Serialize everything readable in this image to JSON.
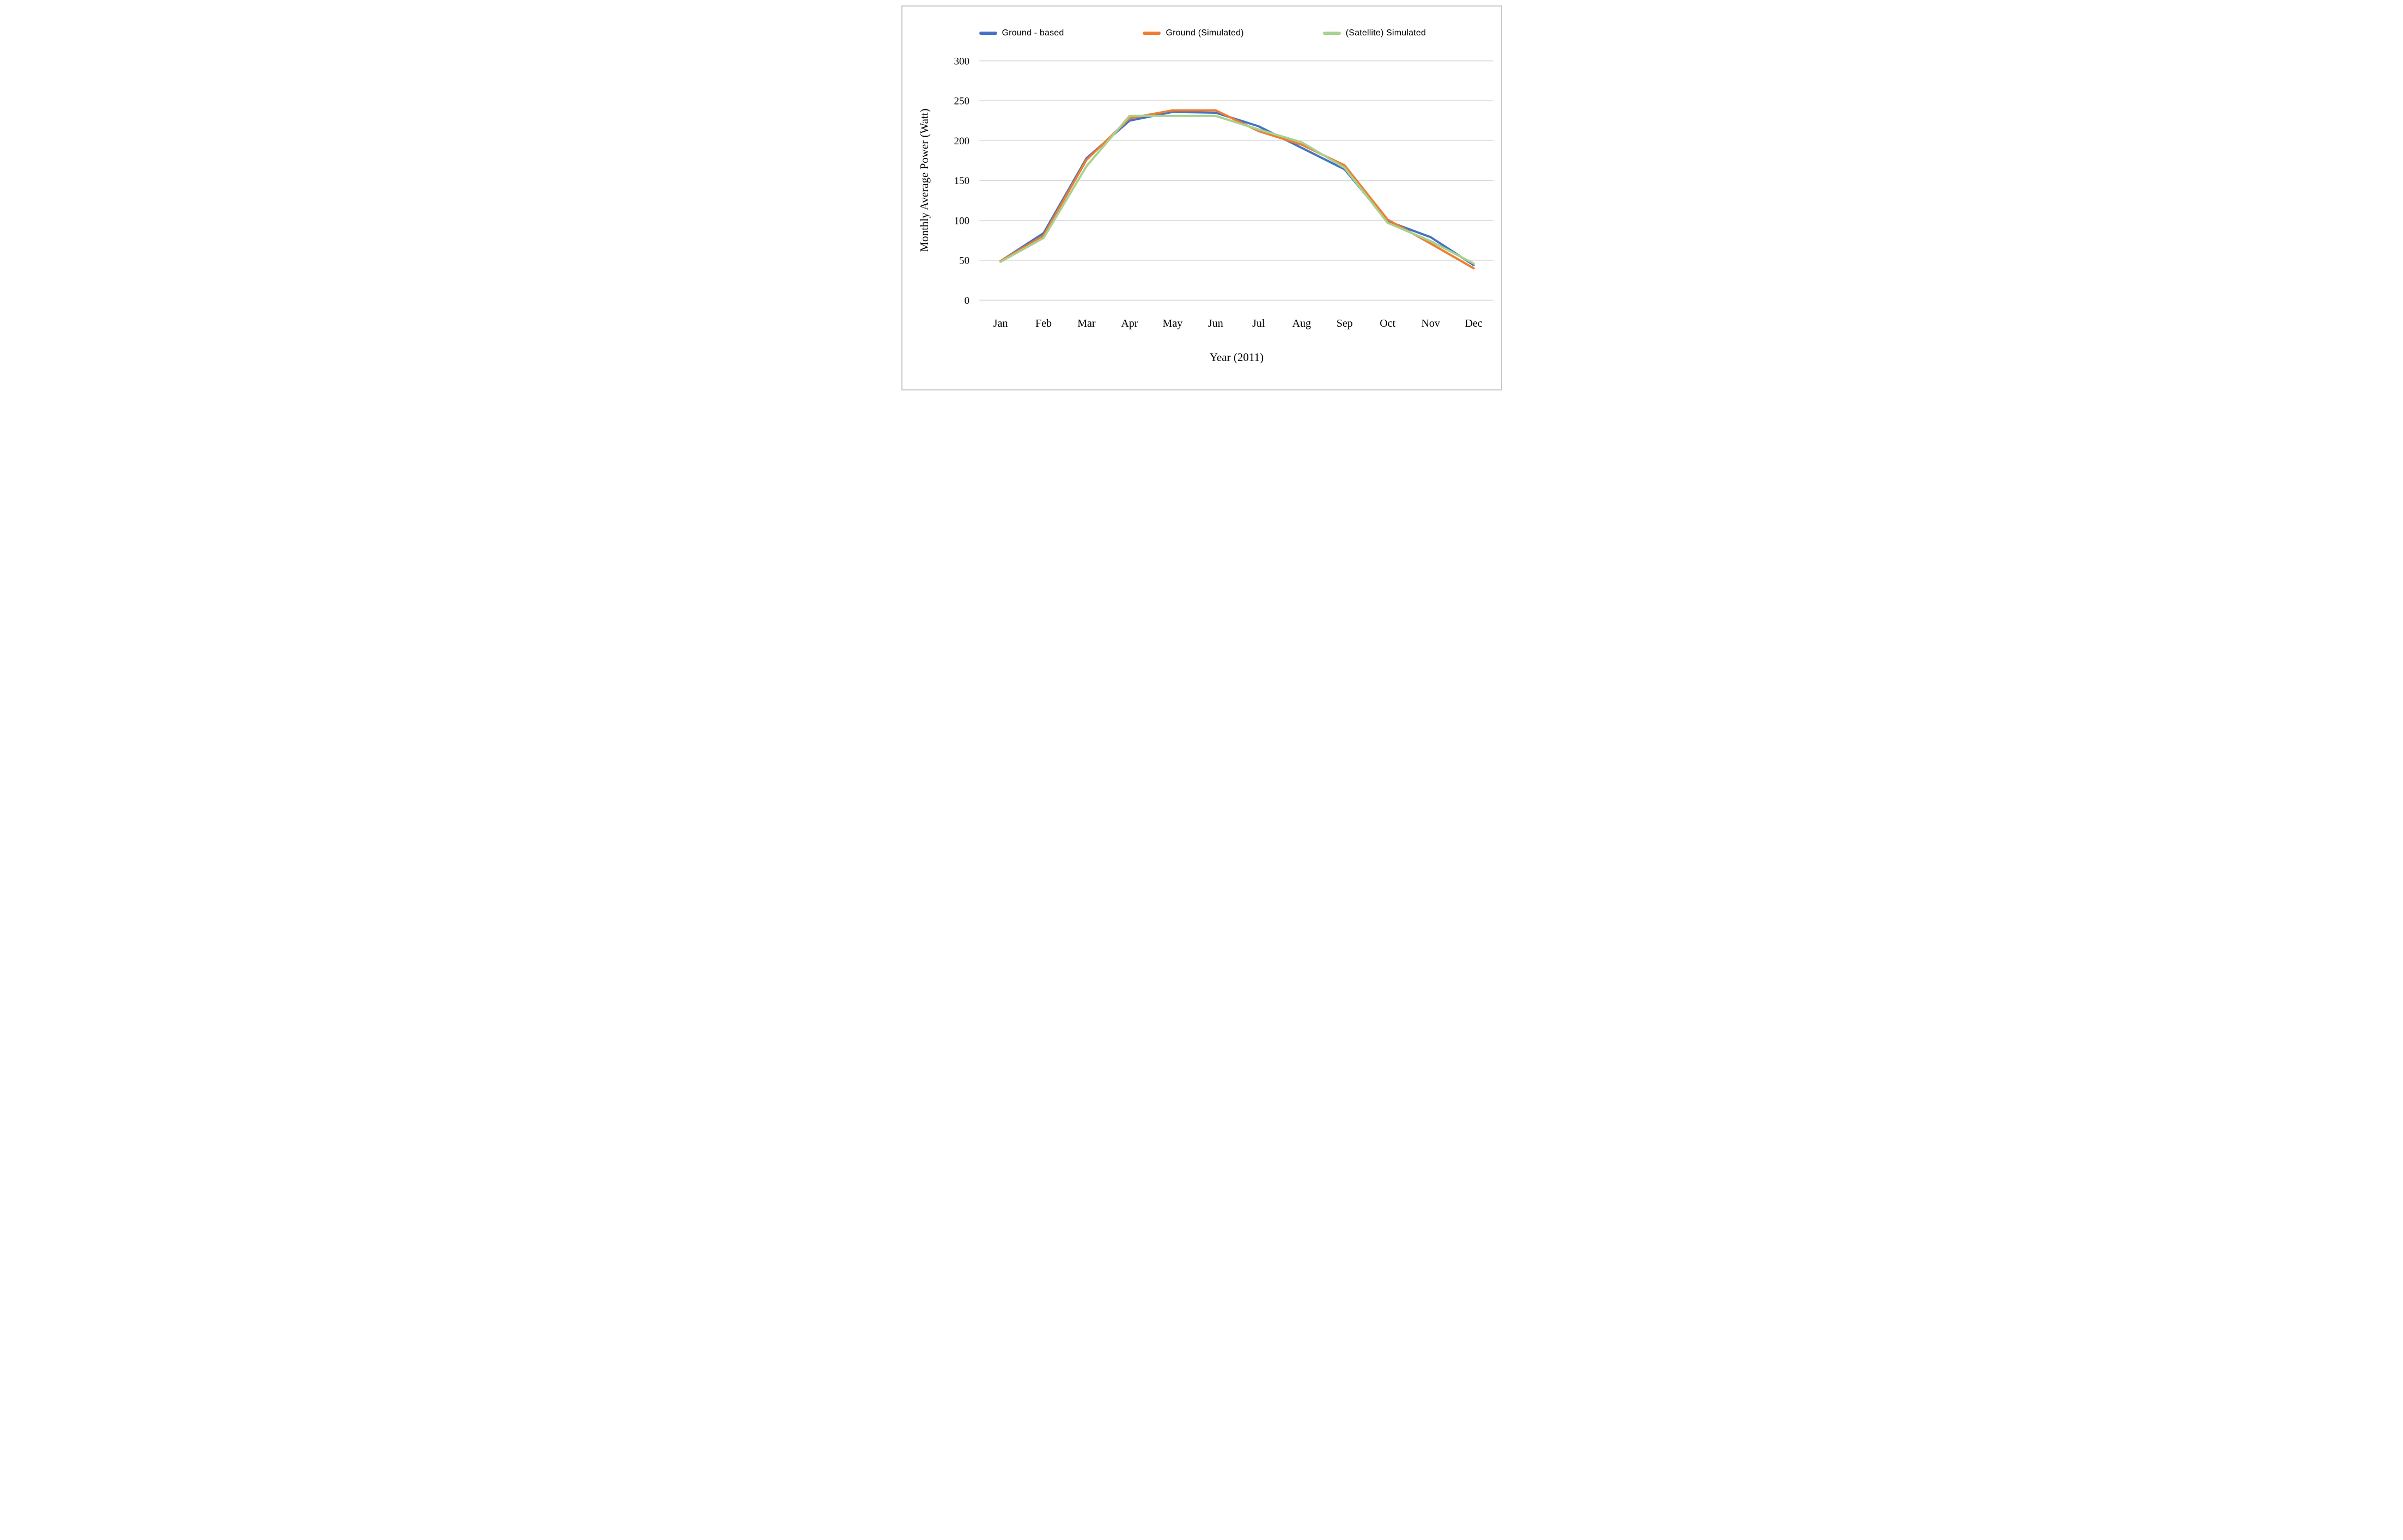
{
  "figure": {
    "background": "#ffffff",
    "border_color": "#c9c9c9"
  },
  "chart_data": {
    "type": "line",
    "categories": [
      "Jan",
      "Feb",
      "Mar",
      "Apr",
      "May",
      "Jun",
      "Jul",
      "Aug",
      "Sep",
      "Oct",
      "Nov",
      "Dec"
    ],
    "series": [
      {
        "id": "ground-based",
        "name": "Ground - based",
        "color": "#4472C4",
        "values": [
          49,
          84,
          178,
          225,
          236,
          235,
          218,
          191,
          164,
          99,
          79,
          44
        ]
      },
      {
        "id": "ground-simulated",
        "name": "Ground (Simulated)",
        "color": "#ED7D31",
        "values": [
          49,
          81,
          176,
          228,
          238,
          238,
          212,
          195,
          169,
          101,
          71,
          40
        ]
      },
      {
        "id": "satellite-simulated",
        "name": "(Satellite) Simulated",
        "color": "#A9D18E",
        "values": [
          48,
          78,
          168,
          231,
          231,
          231,
          214,
          198,
          166,
          97,
          74,
          46
        ]
      }
    ],
    "xlabel": "Year (2011)",
    "ylabel": "Monthly Average Power (Watt)",
    "ylim": [
      0,
      300
    ],
    "ytick_step": 50,
    "yticks": [
      0,
      50,
      100,
      150,
      200,
      250,
      300
    ],
    "grid": "horizontal",
    "gridline_color": "#d9d9d9",
    "text_color": "#000000",
    "legend_position": "top"
  }
}
